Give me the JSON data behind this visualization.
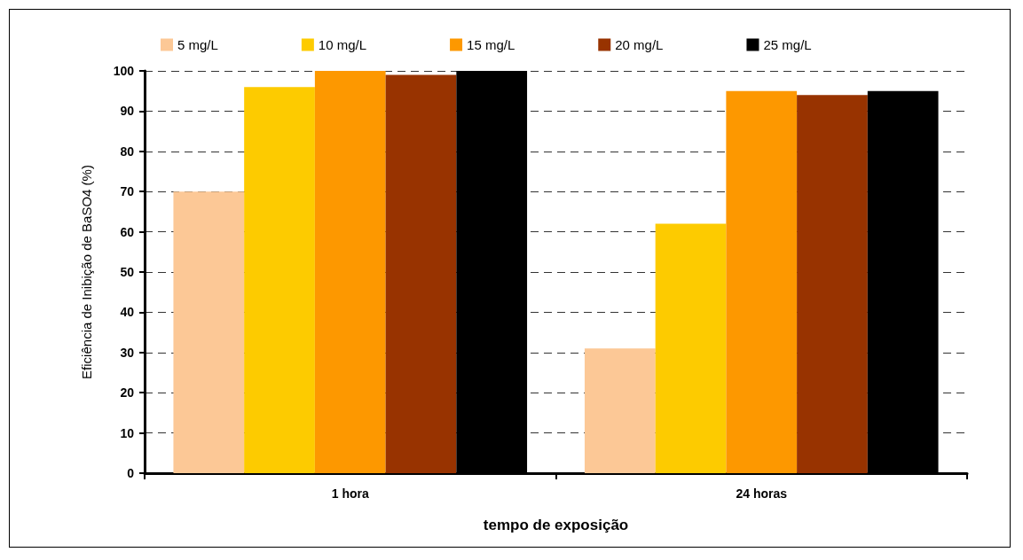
{
  "chart_data": {
    "type": "bar",
    "xlabel": "tempo de exposição",
    "ylabel": "Eficiência de Inibição de BaSO4 (%)",
    "categories": [
      "1 hora",
      "24 horas"
    ],
    "series": [
      {
        "name": "5 mg/L",
        "color": "#fcc896",
        "values": [
          70,
          31
        ]
      },
      {
        "name": "10 mg/L",
        "color": "#fdcb00",
        "values": [
          96,
          62
        ]
      },
      {
        "name": "15 mg/L",
        "color": "#fd9800",
        "values": [
          100,
          95
        ]
      },
      {
        "name": "20 mg/L",
        "color": "#983300",
        "values": [
          99,
          94
        ]
      },
      {
        "name": "25 mg/L",
        "color": "#000000",
        "values": [
          100,
          95
        ]
      }
    ],
    "ylim": [
      0,
      100
    ],
    "yticks": [
      0,
      10,
      20,
      30,
      40,
      50,
      60,
      70,
      80,
      90,
      100
    ],
    "grid": "y",
    "legend": "top"
  }
}
